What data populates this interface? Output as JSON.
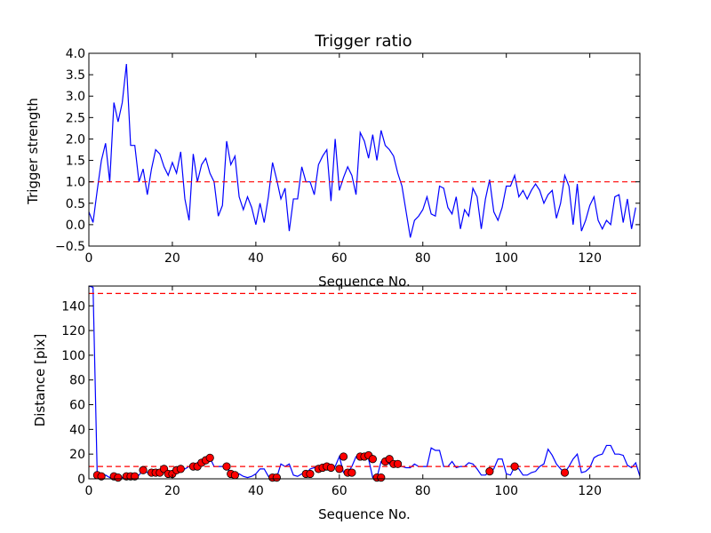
{
  "figure": {
    "background": "#ffffff"
  },
  "colors": {
    "line": "#0000ff",
    "threshold": "#ff0000",
    "marker_fill": "#ff0000",
    "marker_edge": "#000000"
  },
  "chart_data": [
    {
      "type": "line",
      "title": "Trigger ratio",
      "xlabel": "Sequence No.",
      "ylabel": "Trigger strength",
      "xlim": [
        0,
        132
      ],
      "ylim": [
        -0.5,
        4.0
      ],
      "xticks": [
        "0",
        "20",
        "40",
        "60",
        "80",
        "100",
        "120"
      ],
      "yticks": [
        "−0.5",
        "0.0",
        "0.5",
        "1.0",
        "1.5",
        "2.0",
        "2.5",
        "3.0",
        "3.5",
        "4.0"
      ],
      "grid": false,
      "threshold": 1.0,
      "y": [
        0.3,
        0.05,
        0.8,
        1.5,
        1.9,
        1.0,
        2.85,
        2.4,
        2.85,
        3.75,
        1.85,
        1.85,
        1.0,
        1.3,
        0.7,
        1.3,
        1.75,
        1.65,
        1.35,
        1.15,
        1.45,
        1.2,
        1.7,
        0.6,
        0.1,
        1.65,
        1.0,
        1.4,
        1.55,
        1.2,
        1.0,
        0.2,
        0.45,
        1.95,
        1.4,
        1.6,
        0.65,
        0.35,
        0.65,
        0.4,
        0.0,
        0.5,
        0.05,
        0.65,
        1.45,
        1.05,
        0.6,
        0.85,
        -0.15,
        0.6,
        0.6,
        1.35,
        1.0,
        1.0,
        0.7,
        1.4,
        1.6,
        1.75,
        0.55,
        2.0,
        0.8,
        1.1,
        1.35,
        1.15,
        0.7,
        2.15,
        1.95,
        1.55,
        2.1,
        1.5,
        2.2,
        1.85,
        1.75,
        1.6,
        1.2,
        0.9,
        0.3,
        -0.3,
        0.1,
        0.2,
        0.35,
        0.65,
        0.25,
        0.2,
        0.9,
        0.85,
        0.4,
        0.25,
        0.65,
        -0.1,
        0.35,
        0.2,
        0.85,
        0.65,
        -0.1,
        0.6,
        1.05,
        0.3,
        0.1,
        0.4,
        0.9,
        0.9,
        1.15,
        0.65,
        0.8,
        0.6,
        0.8,
        0.95,
        0.8,
        0.5,
        0.7,
        0.8,
        0.15,
        0.5,
        1.15,
        0.9,
        0.0,
        0.95,
        -0.15,
        0.1,
        0.45,
        0.65,
        0.1,
        -0.1,
        0.1,
        0.0,
        0.65,
        0.7,
        0.05,
        0.6,
        -0.1,
        0.4
      ]
    },
    {
      "type": "line",
      "title": "",
      "xlabel": "Sequence No.",
      "ylabel": "Distance [pix]",
      "xlim": [
        0,
        132
      ],
      "ylim": [
        0,
        156
      ],
      "xticks": [
        "0",
        "20",
        "40",
        "60",
        "80",
        "100",
        "120"
      ],
      "yticks": [
        "0",
        "20",
        "40",
        "60",
        "80",
        "100",
        "120",
        "140"
      ],
      "grid": false,
      "thresholds": [
        10,
        150
      ],
      "y": [
        156,
        155,
        3,
        2,
        3,
        1,
        2,
        1,
        1,
        2,
        2,
        2,
        3,
        7,
        5,
        4,
        5,
        5,
        8,
        3,
        4,
        6,
        8,
        8,
        10,
        10,
        13,
        15,
        17,
        17,
        10,
        10,
        10,
        10,
        4,
        3,
        4,
        2,
        1,
        2,
        4,
        8,
        8,
        2,
        1,
        1,
        12,
        10,
        12,
        3,
        2,
        4,
        4,
        8,
        9,
        10,
        10,
        8,
        10,
        10,
        18,
        5,
        5,
        10,
        18,
        18,
        20,
        16,
        1,
        1,
        14,
        16,
        12,
        13,
        12,
        10,
        9,
        9,
        12,
        10,
        10,
        10,
        25,
        23,
        23,
        10,
        10,
        14,
        9,
        10,
        10,
        13,
        12,
        8,
        3,
        3,
        6,
        8,
        16,
        16,
        4,
        3,
        10,
        8,
        3,
        3,
        5,
        6,
        10,
        12,
        24,
        19,
        12,
        8,
        5,
        10,
        16,
        20,
        5,
        6,
        9,
        17,
        19,
        20,
        27,
        27,
        20,
        20,
        19,
        11,
        9,
        13,
        2
      ],
      "markers": {
        "x": [
          2,
          3,
          6,
          7,
          9,
          10,
          11,
          13,
          15,
          16,
          17,
          18,
          19,
          20,
          21,
          22,
          25,
          26,
          27,
          28,
          29,
          33,
          34,
          35,
          44,
          45,
          52,
          53,
          55,
          56,
          57,
          58,
          60,
          61,
          62,
          63,
          65,
          66,
          67,
          68,
          69,
          70,
          71,
          72,
          73,
          74,
          96,
          102,
          114
        ],
        "y": [
          3,
          2,
          2,
          1,
          2,
          2,
          2,
          7,
          5,
          5,
          5,
          8,
          4,
          4,
          7,
          8,
          10,
          10,
          13,
          15,
          17,
          10,
          4,
          3,
          1,
          1,
          4,
          4,
          8,
          9,
          10,
          9,
          8,
          18,
          5,
          5,
          18,
          18,
          19,
          16,
          1,
          1,
          14,
          16,
          12,
          12,
          6,
          10,
          5
        ]
      }
    }
  ]
}
